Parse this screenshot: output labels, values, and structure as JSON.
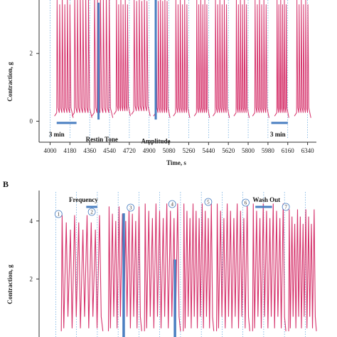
{
  "chart_data": [
    {
      "panel_label": "",
      "type": "line",
      "ylabel": "Contraction, g",
      "xlabel": "Time, s",
      "yticks": [
        0,
        2
      ],
      "xticks": [
        4000,
        4180,
        4360,
        4540,
        4720,
        4900,
        5080,
        5260,
        5440,
        5620,
        5800,
        5980,
        6160,
        6340
      ],
      "xlim": [
        3900,
        6420
      ],
      "ylim": [
        -0.2,
        4.0
      ],
      "grid": "vertical dotted",
      "series_color": "#d6336c",
      "annotations": [
        {
          "text": "3 min",
          "x": 4060,
          "y": -0.2
        },
        {
          "text": "Restin Tone",
          "x": 4470,
          "y": -0.35
        },
        {
          "text": "Amplitude",
          "x": 4960,
          "y": -0.4
        },
        {
          "text": "3 min",
          "x": 6070,
          "y": -0.2
        }
      ],
      "stimulation_bursts": [
        {
          "start": 4060,
          "end": 4200,
          "peak": 3.6,
          "baseline": 0.05
        },
        {
          "start": 4220,
          "end": 4370,
          "peak": 3.8,
          "baseline": 0.05
        },
        {
          "start": 4400,
          "end": 4560,
          "peak": 3.8,
          "baseline": 0.05
        },
        {
          "start": 4600,
          "end": 4720,
          "peak": 3.6,
          "baseline": 0.1
        },
        {
          "start": 4760,
          "end": 4900,
          "peak": 3.7,
          "baseline": 0.1
        },
        {
          "start": 4960,
          "end": 5080,
          "peak": 3.7,
          "baseline": 0.05
        },
        {
          "start": 5140,
          "end": 5260,
          "peak": 3.6,
          "baseline": 0.05
        },
        {
          "start": 5330,
          "end": 5440,
          "peak": 3.6,
          "baseline": 0.05
        },
        {
          "start": 5500,
          "end": 5620,
          "peak": 3.6,
          "baseline": 0.05
        },
        {
          "start": 5690,
          "end": 5800,
          "peak": 3.6,
          "baseline": 0.05
        },
        {
          "start": 5860,
          "end": 5980,
          "peak": 3.6,
          "baseline": 0.05
        },
        {
          "start": 6060,
          "end": 6160,
          "peak": 3.6,
          "baseline": 0.05
        },
        {
          "start": 6240,
          "end": 6360,
          "peak": 3.6,
          "baseline": 0.05
        }
      ]
    },
    {
      "panel_label": "B",
      "type": "line",
      "ylabel": "Contraction, g",
      "xlabel": "",
      "yticks": [
        2,
        4
      ],
      "xlim": [
        0,
        1000
      ],
      "ylim": [
        0,
        5
      ],
      "grid": "vertical dotted",
      "series_color": "#d6336c",
      "annotations": [
        {
          "text": "Frequency",
          "x": 160,
          "y": 4.9
        },
        {
          "text": "Wash Out",
          "x": 820,
          "y": 4.8
        }
      ],
      "markers": [
        "1",
        "2",
        "3",
        "4",
        "5",
        "6",
        "7"
      ],
      "stimulation_bursts": [
        {
          "start": 80,
          "end": 230,
          "peak": 4.2
        },
        {
          "start": 250,
          "end": 370,
          "peak": 4.5
        },
        {
          "start": 380,
          "end": 510,
          "peak": 4.6
        },
        {
          "start": 520,
          "end": 630,
          "peak": 4.6
        },
        {
          "start": 640,
          "end": 760,
          "peak": 4.6
        },
        {
          "start": 770,
          "end": 890,
          "peak": 4.6
        },
        {
          "start": 900,
          "end": 1000,
          "peak": 4.4
        }
      ]
    }
  ]
}
